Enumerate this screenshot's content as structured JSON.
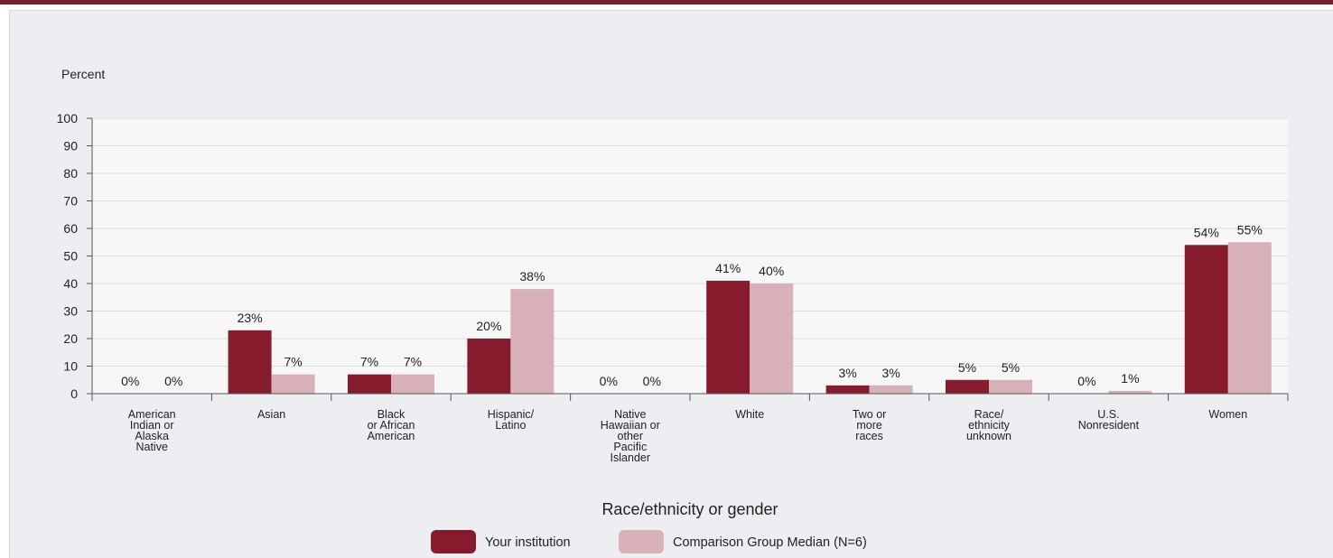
{
  "colors": {
    "your_institution": "#851b2d",
    "comparison": "#d7b1b7",
    "accent_bar": "#7b1c2a"
  },
  "chart_data": {
    "type": "bar",
    "ylabel": "Percent",
    "xlabel": "Race/ethnicity or gender",
    "ylim": [
      0,
      100
    ],
    "yticks": [
      0,
      10,
      20,
      30,
      40,
      50,
      60,
      70,
      80,
      90,
      100
    ],
    "grid": true,
    "legend_position": "bottom",
    "categories": [
      [
        "American",
        "Indian or",
        "Alaska",
        "Native"
      ],
      [
        "Asian"
      ],
      [
        "Black",
        "or African",
        "American"
      ],
      [
        "Hispanic/",
        "Latino"
      ],
      [
        "Native",
        "Hawaiian or",
        "other",
        "Pacific",
        "Islander"
      ],
      [
        "White"
      ],
      [
        "Two or",
        "more",
        "races"
      ],
      [
        "Race/",
        "ethnicity",
        "unknown"
      ],
      [
        "U.S.",
        "Nonresident"
      ],
      [
        "Women"
      ]
    ],
    "series": [
      {
        "name": "Your institution",
        "values": [
          0,
          23,
          7,
          20,
          0,
          41,
          3,
          5,
          0,
          54
        ],
        "labels": [
          "0%",
          "23%",
          "7%",
          "20%",
          "0%",
          "41%",
          "3%",
          "5%",
          "0%",
          "54%"
        ]
      },
      {
        "name": "Comparison Group Median (N=6)",
        "values": [
          0,
          7,
          7,
          38,
          0,
          40,
          3,
          5,
          1,
          55
        ],
        "labels": [
          "0%",
          "7%",
          "7%",
          "38%",
          "0%",
          "40%",
          "3%",
          "5%",
          "1%",
          "55%"
        ]
      }
    ]
  }
}
